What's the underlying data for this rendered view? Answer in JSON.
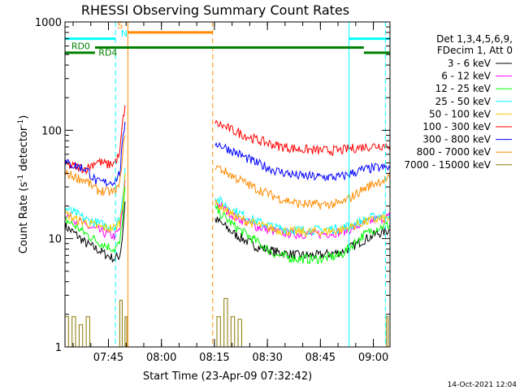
{
  "chart_data": {
    "type": "line",
    "title": "RHESSI Observing Summary Count Rates",
    "xlabel": "Start Time (23-Apr-09 07:32:42)",
    "ylabel": "Count Rate (s⁻¹ detector⁻¹)",
    "ylabel_parts": {
      "main": "Count Rate (s",
      "sup1": "-1",
      "mid": " detector",
      "sup2": "-1",
      "end": ")"
    },
    "y_scale": "log",
    "ylim": [
      1,
      1000
    ],
    "xlim_minutes": [
      0,
      92
    ],
    "y_ticks": [
      {
        "v": 1,
        "label": "1"
      },
      {
        "v": 10,
        "label": "10"
      },
      {
        "v": 100,
        "label": "100"
      },
      {
        "v": 1000,
        "label": "1000"
      }
    ],
    "x_ticks": [
      {
        "m": 12.3,
        "label": "07:45"
      },
      {
        "m": 27.3,
        "label": "08:00"
      },
      {
        "m": 42.3,
        "label": "08:15"
      },
      {
        "m": 57.3,
        "label": "08:30"
      },
      {
        "m": 72.3,
        "label": "08:45"
      },
      {
        "m": 87.3,
        "label": "09:00"
      }
    ],
    "legend": {
      "placement": "right",
      "header": [
        "Det 1,3,4,5,6,9,",
        "FDecim 1, Att 0"
      ],
      "entries": [
        {
          "label": "3 - 6 keV",
          "color": "#000000"
        },
        {
          "label": "6 - 12 keV",
          "color": "#ff00ff"
        },
        {
          "label": "12 - 25 keV",
          "color": "#00ff00"
        },
        {
          "label": "25 - 50 keV",
          "color": "#00ffff"
        },
        {
          "label": "50 - 100 keV",
          "color": "#ffc800"
        },
        {
          "label": "100 - 300 keV",
          "color": "#ff0000"
        },
        {
          "label": "300 - 800 keV",
          "color": "#0000ff"
        },
        {
          "label": "800 - 7000 keV",
          "color": "#ff8c00"
        },
        {
          "label": "7000 - 15000 keV",
          "color": "#8b7500"
        }
      ]
    },
    "series": [
      {
        "name": "3 - 6 keV",
        "color": "#000000",
        "segments": [
          {
            "x": [
              0,
              3,
              6,
              9,
              12,
              14,
              15.5,
              16.2,
              17
            ],
            "y": [
              13,
              11,
              9,
              8,
              7,
              6.5,
              7,
              10,
              22
            ]
          },
          {
            "x": [
              42.5,
              44,
              48,
              54,
              60,
              66,
              72,
              78,
              80,
              84,
              88,
              92
            ],
            "y": [
              15,
              14,
              11,
              8.5,
              7.5,
              7,
              7,
              7.5,
              8,
              9.5,
              11,
              12
            ]
          }
        ]
      },
      {
        "name": "6 - 12 keV",
        "color": "#ff00ff",
        "segments": [
          {
            "x": [
              0,
              3,
              6,
              9,
              12,
              14,
              15.5,
              16.2,
              17
            ],
            "y": [
              17,
              15,
              13,
              12,
              11,
              10.5,
              12,
              17,
              35
            ]
          },
          {
            "x": [
              42.5,
              44,
              48,
              54,
              60,
              66,
              72,
              78,
              80,
              84,
              88,
              92
            ],
            "y": [
              22,
              20,
              16,
              13,
              11.5,
              11,
              11,
              11.5,
              12,
              13.5,
              15,
              16
            ]
          }
        ]
      },
      {
        "name": "12 - 25 keV",
        "color": "#00ff00",
        "segments": [
          {
            "x": [
              0,
              3,
              6,
              9,
              12,
              14,
              15.5,
              16.2,
              17
            ],
            "y": [
              15,
              13,
              11,
              9.5,
              8.5,
              8,
              9,
              14,
              30
            ]
          },
          {
            "x": [
              42.5,
              44,
              48,
              54,
              60,
              66,
              72,
              78,
              80,
              84,
              88,
              92
            ],
            "y": [
              19,
              17,
              13,
              9.5,
              7,
              6.5,
              6.5,
              7,
              8,
              10.5,
              12.5,
              13.5
            ]
          }
        ]
      },
      {
        "name": "25 - 50 keV",
        "color": "#00ffff",
        "segments": [
          {
            "x": [
              0,
              3,
              6,
              9,
              12,
              14,
              15.5,
              16.2,
              17
            ],
            "y": [
              19,
              17,
              15,
              14,
              13,
              13,
              15,
              22,
              45
            ]
          },
          {
            "x": [
              42.5,
              44,
              48,
              54,
              60,
              66,
              72,
              78,
              80,
              84,
              88,
              92
            ],
            "y": [
              24,
              22,
              18,
              14.5,
              12.5,
              12,
              12,
              12.5,
              13,
              14.5,
              16,
              17
            ]
          }
        ]
      },
      {
        "name": "50 - 100 keV",
        "color": "#ffc800",
        "segments": [
          {
            "x": [
              0,
              3,
              6,
              9,
              12,
              14,
              15.5,
              16.2,
              17
            ],
            "y": [
              17,
              15,
              14,
              13,
              12.5,
              12.5,
              14,
              20,
              40
            ]
          },
          {
            "x": [
              42.5,
              44,
              48,
              54,
              60,
              66,
              72,
              78,
              80,
              84,
              88,
              92
            ],
            "y": [
              21,
              20,
              16,
              13.5,
              12,
              11.5,
              11.5,
              12,
              12.5,
              14,
              15,
              15.5
            ]
          }
        ]
      },
      {
        "name": "100 - 300 keV",
        "color": "#ff0000",
        "segments": [
          {
            "x": [
              0,
              3,
              6,
              9,
              12,
              14,
              15.5,
              16.2,
              17
            ],
            "y": [
              48,
              46,
              44,
              52,
              48,
              50,
              60,
              110,
              170
            ]
          },
          {
            "x": [
              42.5,
              44,
              48,
              54,
              60,
              66,
              72,
              78,
              80,
              84,
              88,
              92
            ],
            "y": [
              115,
              112,
              98,
              82,
              72,
              67,
              65,
              65,
              67,
              70,
              72,
              73
            ]
          }
        ]
      },
      {
        "name": "300 - 800 keV",
        "color": "#0000ff",
        "segments": [
          {
            "x": [
              0,
              3,
              6,
              9,
              12,
              14,
              15.5,
              16.2,
              17
            ],
            "y": [
              50,
              47,
              44,
              33,
              33,
              34,
              40,
              70,
              120
            ]
          },
          {
            "x": [
              42.5,
              44,
              48,
              54,
              60,
              66,
              72,
              78,
              80,
              84,
              88,
              92
            ],
            "y": [
              77,
              73,
              63,
              50,
              42,
              38,
              37,
              37,
              39,
              43,
              45,
              45
            ]
          }
        ]
      },
      {
        "name": "800 - 7000 keV",
        "color": "#ff8c00",
        "segments": [
          {
            "x": [
              0,
              3,
              6,
              9,
              12,
              14,
              15.5,
              16.2,
              17
            ],
            "y": [
              40,
              37,
              34,
              28,
              27,
              27,
              31,
              55,
              90
            ]
          },
          {
            "x": [
              42.5,
              44,
              48,
              54,
              60,
              66,
              72,
              78,
              80,
              84,
              88,
              92
            ],
            "y": [
              47,
              44,
              37,
              29,
              24,
              21,
              20.5,
              21,
              23,
              28,
              33,
              36
            ]
          }
        ]
      },
      {
        "name": "7000 - 15000 keV",
        "color": "#8b7500",
        "segments": [
          {
            "x": [
              0,
              0,
              1,
              1,
              2,
              2,
              3,
              3,
              4,
              4,
              5,
              5,
              6,
              6,
              7,
              7
            ],
            "y": [
              1,
              1.9,
              1.9,
              1,
              1,
              1.9,
              1.9,
              1,
              1,
              1.6,
              1.6,
              1,
              1,
              1.9,
              1.9,
              1
            ]
          },
          {
            "x": [
              15.5,
              15.5,
              16.2,
              16.2,
              17,
              17,
              17.5,
              17.5
            ],
            "y": [
              1,
              2.7,
              2.7,
              1,
              1,
              1.9,
              1.9,
              1
            ]
          },
          {
            "x": [
              43,
              43,
              44,
              44,
              45,
              45,
              46,
              46,
              47,
              47,
              48,
              48,
              49,
              49,
              50,
              50
            ],
            "y": [
              1,
              1.9,
              1.9,
              1,
              1,
              2.8,
              2.8,
              1,
              1,
              1.9,
              1.9,
              1,
              1,
              1.8,
              1.8,
              1
            ]
          },
          {
            "x": [
              91,
              91,
              91.5,
              91.5
            ],
            "y": [
              1,
              1.9,
              1.9,
              1
            ]
          }
        ]
      }
    ],
    "annotations": {
      "vertical_lines": [
        {
          "m": 14.3,
          "color": "#00ffff",
          "dash": true
        },
        {
          "m": 17.8,
          "color": "#ff8c00",
          "dash": false
        },
        {
          "m": 41.8,
          "color": "#ff8c00",
          "dash": true
        },
        {
          "m": 80.4,
          "color": "#00ffff",
          "dash": false
        },
        {
          "m": 90.7,
          "color": "#00ffff",
          "dash": true
        }
      ],
      "bars": [
        {
          "m1": 0,
          "m2": 14.3,
          "y": 700,
          "color": "#00ffff"
        },
        {
          "m1": 80.4,
          "m2": 92,
          "y": 700,
          "color": "#00ffff"
        },
        {
          "m1": 17.8,
          "m2": 41.8,
          "y": 800,
          "color": "#ff8c00"
        },
        {
          "m1": 8.5,
          "m2": 84.6,
          "y": 580,
          "color": "#008000"
        },
        {
          "m1": 0,
          "m2": 8.5,
          "y": 520,
          "color": "#008000"
        },
        {
          "m1": 84.6,
          "m2": 92,
          "y": 520,
          "color": "#008000"
        }
      ],
      "labels": [
        {
          "text": "S",
          "m": 14.8,
          "y": 870,
          "color": "#ff8c00"
        },
        {
          "text": "N",
          "m": 15.8,
          "y": 730,
          "color": "#00ffff"
        },
        {
          "text": "RD0",
          "m": 1.8,
          "y": 560,
          "color": "#008000"
        },
        {
          "text": "RD4",
          "m": 9.5,
          "y": 490,
          "color": "#008000"
        }
      ]
    },
    "footer_timestamp": "14-Oct-2021 12:04"
  }
}
